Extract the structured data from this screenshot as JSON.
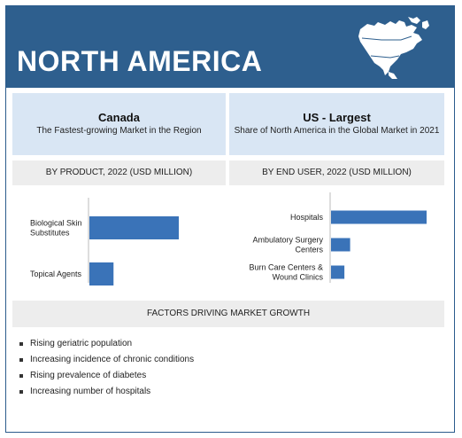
{
  "header": {
    "title": "NORTH AMERICA"
  },
  "panels": {
    "left": {
      "heading": "Canada",
      "subtext": "The Fastest-growing Market in the Region"
    },
    "right": {
      "heading": "US - Largest",
      "subtext": "Share of North America in the Global Market in 2021"
    }
  },
  "sections": {
    "by_product": "BY PRODUCT, 2022 (USD MILLION)",
    "by_end_user": "BY END USER, 2022 (USD MILLION)",
    "factors": "FACTORS DRIVING MARKET GROWTH"
  },
  "factors": [
    "Rising geriatric population",
    "Increasing incidence of chronic conditions",
    "Rising prevalence of diabetes",
    "Increasing number of hospitals"
  ],
  "colors": {
    "header": "#2e5f8e",
    "bar": "#3a73b8",
    "panel": "#d9e6f4",
    "section": "#ededed"
  },
  "chart_data": [
    {
      "type": "bar",
      "orientation": "horizontal",
      "title": "BY PRODUCT, 2022 (USD MILLION)",
      "categories": [
        "Biological Skin Substitutes",
        "Topical Agents"
      ],
      "values": [
        100,
        27
      ],
      "axis_labels_shown": false
    },
    {
      "type": "bar",
      "orientation": "horizontal",
      "title": "BY END USER, 2022 (USD MILLION)",
      "categories": [
        "Hospitals",
        "Ambulatory Surgery Centers",
        "Burn Care Centers & Wound Clinics"
      ],
      "values": [
        100,
        20,
        14
      ],
      "axis_labels_shown": false
    }
  ]
}
